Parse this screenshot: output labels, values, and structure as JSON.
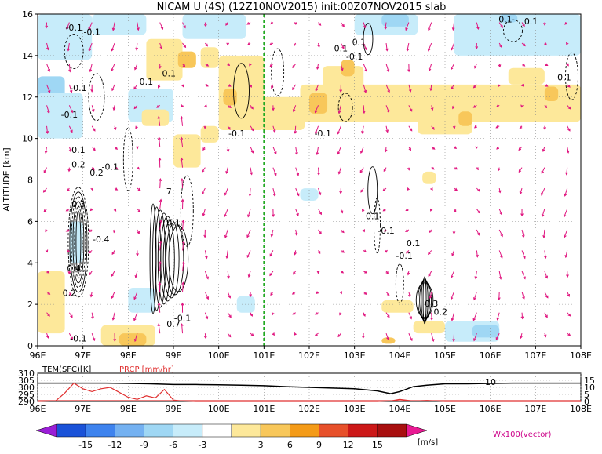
{
  "title": "NICAM U (4S) (12Z10NOV2015) init:00Z07NOV2015 slab",
  "chart_data": [
    {
      "type": "heatmap",
      "name": "main-cross-section",
      "ylabel": "ALTITUDE [km]",
      "xlim": [
        96,
        108
      ],
      "ylim": [
        0,
        16
      ],
      "xticks": [
        "96E",
        "97E",
        "98E",
        "99E",
        "100E",
        "101E",
        "102E",
        "103E",
        "104E",
        "105E",
        "106E",
        "107E",
        "108E"
      ],
      "yticks": [
        "0",
        "2",
        "4",
        "6",
        "8",
        "10",
        "12",
        "14",
        "16"
      ],
      "marker_line_x": 101,
      "contour_labels": [
        {
          "x": 96.8,
          "y": 15.2,
          "text": "-0.1"
        },
        {
          "x": 97.2,
          "y": 15.0,
          "text": "-0.1"
        },
        {
          "x": 96.9,
          "y": 12.3,
          "text": "-0.1"
        },
        {
          "x": 96.7,
          "y": 11.0,
          "text": "-0.1"
        },
        {
          "x": 96.9,
          "y": 9.3,
          "text": "0.1"
        },
        {
          "x": 96.9,
          "y": 8.6,
          "text": "0.2"
        },
        {
          "x": 97.3,
          "y": 8.2,
          "text": "0.2"
        },
        {
          "x": 97.6,
          "y": 8.5,
          "text": "-0.1"
        },
        {
          "x": 96.9,
          "y": 6.7,
          "text": "0.3"
        },
        {
          "x": 97.4,
          "y": 5.0,
          "text": "-0.4"
        },
        {
          "x": 96.8,
          "y": 3.6,
          "text": "0.4"
        },
        {
          "x": 96.7,
          "y": 2.4,
          "text": "0.2"
        },
        {
          "x": 96.9,
          "y": 0.2,
          "text": "-0.1"
        },
        {
          "x": 98.4,
          "y": 12.6,
          "text": "0.1"
        },
        {
          "x": 98.9,
          "y": 13.0,
          "text": "0.1"
        },
        {
          "x": 98.9,
          "y": 7.3,
          "text": "7"
        },
        {
          "x": 99.0,
          "y": 5.8,
          "text": "0.1"
        },
        {
          "x": 99.2,
          "y": 1.2,
          "text": "-0.1"
        },
        {
          "x": 99.0,
          "y": 0.9,
          "text": "0.7"
        },
        {
          "x": 100.4,
          "y": 10.1,
          "text": "-0.1"
        },
        {
          "x": 102.3,
          "y": 10.1,
          "text": "-0.1"
        },
        {
          "x": 102.7,
          "y": 14.2,
          "text": "0.1"
        },
        {
          "x": 103.0,
          "y": 13.8,
          "text": "-0.1"
        },
        {
          "x": 103.1,
          "y": 14.5,
          "text": "0.1"
        },
        {
          "x": 103.4,
          "y": 6.1,
          "text": "0.1"
        },
        {
          "x": 103.7,
          "y": 5.4,
          "text": "-0.1"
        },
        {
          "x": 104.3,
          "y": 4.8,
          "text": "0.1"
        },
        {
          "x": 104.1,
          "y": 4.2,
          "text": "-0.1"
        },
        {
          "x": 104.7,
          "y": 1.9,
          "text": "0.3"
        },
        {
          "x": 104.9,
          "y": 1.5,
          "text": "0.2"
        },
        {
          "x": 106.3,
          "y": 15.6,
          "text": "-0.1"
        },
        {
          "x": 106.9,
          "y": 15.5,
          "text": "0.1"
        },
        {
          "x": 107.6,
          "y": 12.8,
          "text": "-0.1"
        }
      ],
      "shaded_regions": [
        {
          "x": [
            96.0,
            97.2
          ],
          "y": [
            13.8,
            16.0
          ],
          "value": -3
        },
        {
          "x": [
            96.0,
            96.6
          ],
          "y": [
            12.0,
            13.0
          ],
          "value": -6
        },
        {
          "x": [
            96.0,
            97.0
          ],
          "y": [
            10.0,
            12.2
          ],
          "value": -3
        },
        {
          "x": [
            97.2,
            98.4
          ],
          "y": [
            15.0,
            16.0
          ],
          "value": -3
        },
        {
          "x": [
            98.0,
            99.0
          ],
          "y": [
            10.8,
            12.4
          ],
          "value": -3
        },
        {
          "x": [
            99.2,
            100.6
          ],
          "y": [
            14.8,
            16.0
          ],
          "value": -3
        },
        {
          "x": [
            103.0,
            104.4
          ],
          "y": [
            15.0,
            16.0
          ],
          "value": -3
        },
        {
          "x": [
            103.6,
            104.2
          ],
          "y": [
            15.4,
            16.0
          ],
          "value": -6
        },
        {
          "x": [
            105.2,
            108.0
          ],
          "y": [
            14.0,
            16.0
          ],
          "value": -3
        },
        {
          "x": [
            106.2,
            106.6
          ],
          "y": [
            15.6,
            16.0
          ],
          "value": -6
        },
        {
          "x": [
            96.0,
            96.6
          ],
          "y": [
            0.6,
            3.6
          ],
          "value": 3
        },
        {
          "x": [
            97.4,
            98.6
          ],
          "y": [
            0.0,
            1.0
          ],
          "value": 3
        },
        {
          "x": [
            97.8,
            98.4
          ],
          "y": [
            0.0,
            0.6
          ],
          "value": 6
        },
        {
          "x": [
            98.4,
            99.2
          ],
          "y": [
            12.8,
            14.8
          ],
          "value": 3
        },
        {
          "x": [
            99.0,
            99.6
          ],
          "y": [
            8.6,
            10.2
          ],
          "value": 3
        },
        {
          "x": [
            99.6,
            100.0
          ],
          "y": [
            13.4,
            14.4
          ],
          "value": 3
        },
        {
          "x": [
            100.0,
            101.0
          ],
          "y": [
            10.4,
            14.0
          ],
          "value": 3
        },
        {
          "x": [
            100.9,
            101.9
          ],
          "y": [
            10.4,
            12.0
          ],
          "value": 3
        },
        {
          "x": [
            101.8,
            103.8
          ],
          "y": [
            10.8,
            12.6
          ],
          "value": 3
        },
        {
          "x": [
            102.3,
            103.2
          ],
          "y": [
            12.3,
            13.5
          ],
          "value": 3
        },
        {
          "x": [
            103.6,
            108.0
          ],
          "y": [
            10.8,
            12.6
          ],
          "value": 3
        },
        {
          "x": [
            104.4,
            105.6
          ],
          "y": [
            10.2,
            11.6
          ],
          "value": 3
        },
        {
          "x": [
            106.4,
            107.2
          ],
          "y": [
            12.6,
            13.4
          ],
          "value": 3
        },
        {
          "x": [
            102.0,
            102.4
          ],
          "y": [
            11.2,
            12.2
          ],
          "value": 6
        },
        {
          "x": [
            102.7,
            103.0
          ],
          "y": [
            13.0,
            13.8
          ],
          "value": 6
        },
        {
          "x": [
            105.3,
            105.6
          ],
          "y": [
            10.6,
            11.3
          ],
          "value": 6
        },
        {
          "x": [
            107.2,
            107.5
          ],
          "y": [
            11.8,
            12.5
          ],
          "value": 6
        },
        {
          "x": [
            100.1,
            100.4
          ],
          "y": [
            11.6,
            12.4
          ],
          "value": 6
        },
        {
          "x": [
            104.3,
            105.0
          ],
          "y": [
            0.6,
            1.2
          ],
          "value": 3
        },
        {
          "x": [
            103.6,
            104.3
          ],
          "y": [
            1.6,
            2.2
          ],
          "value": 3
        },
        {
          "x": [
            104.5,
            104.8
          ],
          "y": [
            7.8,
            8.4
          ],
          "value": 3
        },
        {
          "x": [
            103.6,
            103.9
          ],
          "y": [
            0.1,
            0.4
          ],
          "value": 6
        },
        {
          "x": [
            98.3,
            98.9
          ],
          "y": [
            10.6,
            11.4
          ],
          "value": 3
        },
        {
          "x": [
            99.1,
            99.5
          ],
          "y": [
            13.4,
            14.2
          ],
          "value": 6
        },
        {
          "x": [
            99.6,
            100.0
          ],
          "y": [
            9.8,
            10.6
          ],
          "value": 3
        },
        {
          "x": [
            105.0,
            106.2
          ],
          "y": [
            0.2,
            1.2
          ],
          "value": -3
        },
        {
          "x": [
            105.6,
            106.2
          ],
          "y": [
            0.4,
            1.0
          ],
          "value": -6
        },
        {
          "x": [
            98.0,
            98.6
          ],
          "y": [
            1.6,
            2.8
          ],
          "value": -3
        },
        {
          "x": [
            101.8,
            102.2
          ],
          "y": [
            7.0,
            7.6
          ],
          "value": -3
        },
        {
          "x": [
            100.4,
            100.8
          ],
          "y": [
            1.6,
            2.4
          ],
          "value": -3
        },
        {
          "x": [
            96.7,
            97.0
          ],
          "y": [
            4.0,
            6.0
          ],
          "value": -3
        }
      ]
    },
    {
      "type": "line",
      "name": "surface-panel",
      "left_axis_label": "TEM(SFC)[K]",
      "right_axis_label": "PRCP [mm/hr]",
      "left_ticks": [
        "310",
        "305",
        "300",
        "295",
        "290"
      ],
      "right_ticks": [
        "15",
        "10",
        "5",
        "0"
      ],
      "xticks": [
        "96E",
        "97E",
        "98E",
        "99E",
        "100E",
        "101E",
        "102E",
        "103E",
        "104E",
        "105E",
        "106E",
        "107E",
        "108E"
      ],
      "contour_label": "10",
      "series": [
        {
          "name": "TEM(SFC)",
          "color": "#000000",
          "x": [
            96,
            96.5,
            97,
            97.5,
            98,
            98.5,
            99,
            99.5,
            100,
            100.5,
            101,
            101.5,
            102,
            102.5,
            103,
            103.5,
            103.8,
            104,
            104.3,
            104.6,
            105,
            105.5,
            106,
            106.5,
            107,
            107.5,
            108
          ],
          "y": [
            303,
            303,
            303,
            303,
            302.8,
            302.5,
            302,
            302,
            301.8,
            301.5,
            301.2,
            300.5,
            300,
            299.5,
            299,
            297.5,
            295.5,
            297,
            300.5,
            301.5,
            302.5,
            302.5,
            302.8,
            303,
            303,
            303,
            303
          ]
        },
        {
          "name": "PRCP",
          "color": "#e03030",
          "x": [
            96,
            96.4,
            96.6,
            96.8,
            97,
            97.2,
            97.4,
            97.6,
            97.8,
            98,
            98.2,
            98.4,
            98.6,
            98.8,
            99,
            99.2,
            99.5,
            100,
            101,
            102,
            103,
            103.5,
            103.8,
            104,
            104.3,
            104.6,
            105,
            106,
            107,
            108
          ],
          "y": [
            0,
            0.5,
            6,
            13,
            9,
            7,
            9,
            10,
            6.5,
            3,
            1.5,
            4,
            2.5,
            8.5,
            1,
            0.3,
            0,
            0,
            0,
            0,
            0,
            0,
            0.4,
            1.5,
            0.3,
            0.7,
            0,
            0,
            0,
            0
          ]
        }
      ]
    },
    {
      "type": "bar",
      "name": "colorbar",
      "ticks": [
        "-15",
        "-12",
        "-9",
        "-6",
        "-3",
        "3",
        "6",
        "9",
        "12",
        "15"
      ],
      "unit": "[m/s]",
      "vector_label": "Wx100(vector)",
      "colors": [
        "#9a1ed6",
        "#1a52d8",
        "#3e83ee",
        "#74b1f1",
        "#9fd7f4",
        "#c7ecfa",
        "#ffffff",
        "#fde89a",
        "#f8c75a",
        "#f49b18",
        "#e7502a",
        "#cc1818",
        "#a80f0f",
        "#e81a93"
      ]
    }
  ]
}
